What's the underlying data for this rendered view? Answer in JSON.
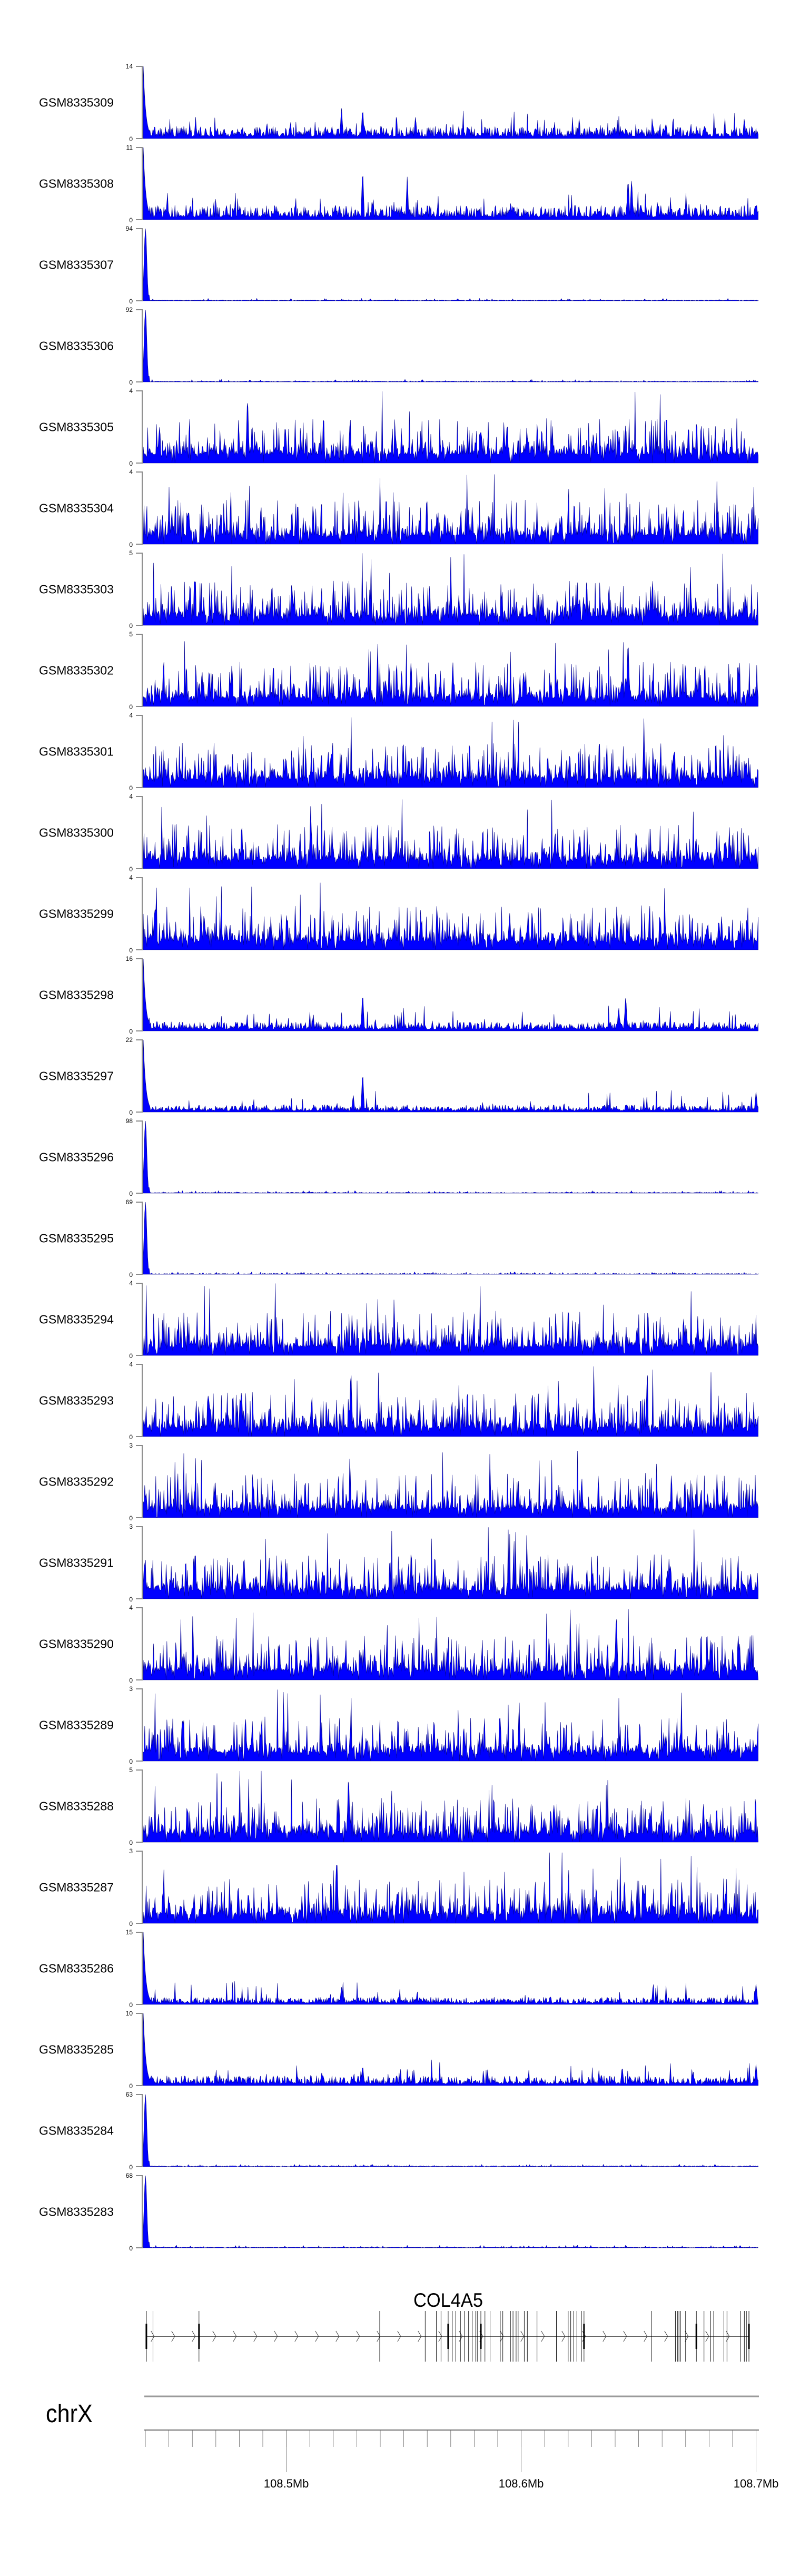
{
  "chart_data": {
    "type": "area",
    "title": "",
    "xlabel": "",
    "ylabel": "",
    "chromosome": "chrX",
    "x_range_mb": [
      108.44,
      108.701
    ],
    "axis_ticks": {
      "minor_step_mb": 0.01,
      "major": [
        {
          "value": 108.5,
          "label": "108.5Mb"
        },
        {
          "value": 108.6,
          "label": "108.6Mb"
        },
        {
          "value": 108.7,
          "label": "108.7Mb"
        }
      ]
    },
    "series_color": "#0000FF",
    "series_outline": "#00008B",
    "tracks": [
      {
        "name": "GSM8335309",
        "ylim": [
          0,
          14
        ],
        "ymax_label": "14",
        "ymin_label": "0",
        "profile": "moderate",
        "start_peak": 14,
        "baseline_mean": 1.4,
        "peaks": [
          {
            "mb": 108.5235,
            "value": 6.2
          },
          {
            "mb": 108.5325,
            "value": 6.2
          },
          {
            "mb": 108.555,
            "value": 4.5
          },
          {
            "mb": 108.695,
            "value": 4.1
          }
        ]
      },
      {
        "name": "GSM8335308",
        "ylim": [
          0,
          11
        ],
        "ymax_label": "11",
        "ymin_label": "0",
        "profile": "moderate",
        "start_peak": 11,
        "baseline_mean": 1.3,
        "peaks": [
          {
            "mb": 108.5325,
            "value": 8.1
          },
          {
            "mb": 108.5515,
            "value": 6.7
          },
          {
            "mb": 108.6455,
            "value": 6.7
          },
          {
            "mb": 108.647,
            "value": 6.7
          }
        ]
      },
      {
        "name": "GSM8335307",
        "ylim": [
          0,
          94
        ],
        "ymax_label": "94",
        "ymin_label": "0",
        "profile": "start-peak",
        "start_peak": 94,
        "baseline_mean": 0.6,
        "peaks": []
      },
      {
        "name": "GSM8335306",
        "ylim": [
          0,
          92
        ],
        "ymax_label": "92",
        "ymin_label": "0",
        "profile": "start-peak",
        "start_peak": 92,
        "baseline_mean": 0.6,
        "peaks": []
      },
      {
        "name": "GSM8335305",
        "ylim": [
          0,
          4
        ],
        "ymax_label": "4",
        "ymin_label": "0",
        "profile": "low",
        "start_peak": 1,
        "baseline_mean": 0.8,
        "peaks": [
          {
            "mb": 108.4835,
            "value": 4
          }
        ]
      },
      {
        "name": "GSM8335304",
        "ylim": [
          0,
          4
        ],
        "ymax_label": "4",
        "ymin_label": "0",
        "profile": "low",
        "start_peak": 2,
        "baseline_mean": 0.8,
        "peaks": []
      },
      {
        "name": "GSM8335303",
        "ylim": [
          0,
          5
        ],
        "ymax_label": "5",
        "ymin_label": "0",
        "profile": "low",
        "start_peak": 2,
        "baseline_mean": 0.9,
        "peaks": []
      },
      {
        "name": "GSM8335302",
        "ylim": [
          0,
          5
        ],
        "ymax_label": "5",
        "ymin_label": "0",
        "profile": "low",
        "start_peak": 1,
        "baseline_mean": 0.9,
        "peaks": [
          {
            "mb": 108.6455,
            "value": 5
          }
        ]
      },
      {
        "name": "GSM8335301",
        "ylim": [
          0,
          4
        ],
        "ymax_label": "4",
        "ymin_label": "0",
        "profile": "low",
        "start_peak": 2,
        "baseline_mean": 0.8,
        "peaks": []
      },
      {
        "name": "GSM8335300",
        "ylim": [
          0,
          4
        ],
        "ymax_label": "4",
        "ymin_label": "0",
        "profile": "low",
        "start_peak": 1,
        "baseline_mean": 0.8,
        "peaks": []
      },
      {
        "name": "GSM8335299",
        "ylim": [
          0,
          4
        ],
        "ymax_label": "4",
        "ymin_label": "0",
        "profile": "low",
        "start_peak": 1,
        "baseline_mean": 0.9,
        "peaks": []
      },
      {
        "name": "GSM8335298",
        "ylim": [
          0,
          16
        ],
        "ymax_label": "16",
        "ymin_label": "0",
        "profile": "moderate",
        "start_peak": 16,
        "baseline_mean": 1.2,
        "peaks": [
          {
            "mb": 108.5325,
            "value": 9
          },
          {
            "mb": 108.6445,
            "value": 8.3
          },
          {
            "mb": 108.6415,
            "value": 5.5
          }
        ]
      },
      {
        "name": "GSM8335297",
        "ylim": [
          0,
          22
        ],
        "ymax_label": "22",
        "ymin_label": "0",
        "profile": "moderate",
        "start_peak": 22,
        "baseline_mean": 1.3,
        "peaks": [
          {
            "mb": 108.5325,
            "value": 13
          },
          {
            "mb": 108.5285,
            "value": 5.5
          },
          {
            "mb": 108.7,
            "value": 6.5
          }
        ]
      },
      {
        "name": "GSM8335296",
        "ylim": [
          0,
          98
        ],
        "ymax_label": "98",
        "ymin_label": "0",
        "profile": "start-peak",
        "start_peak": 98,
        "baseline_mean": 0.7,
        "peaks": []
      },
      {
        "name": "GSM8335295",
        "ylim": [
          0,
          69
        ],
        "ymax_label": "69",
        "ymin_label": "0",
        "profile": "start-peak",
        "start_peak": 69,
        "baseline_mean": 0.6,
        "peaks": []
      },
      {
        "name": "GSM8335294",
        "ylim": [
          0,
          4
        ],
        "ymax_label": "4",
        "ymin_label": "0",
        "profile": "low",
        "start_peak": 1,
        "baseline_mean": 0.8,
        "peaks": []
      },
      {
        "name": "GSM8335293",
        "ylim": [
          0,
          4
        ],
        "ymax_label": "4",
        "ymin_label": "0",
        "profile": "low",
        "start_peak": 1,
        "baseline_mean": 0.8,
        "peaks": [
          {
            "mb": 108.5275,
            "value": 4
          }
        ]
      },
      {
        "name": "GSM8335292",
        "ylim": [
          0,
          3
        ],
        "ymax_label": "3",
        "ymin_label": "0",
        "profile": "low",
        "start_peak": 1,
        "baseline_mean": 0.7,
        "peaks": []
      },
      {
        "name": "GSM8335291",
        "ylim": [
          0,
          3
        ],
        "ymax_label": "3",
        "ymin_label": "0",
        "profile": "low",
        "start_peak": 1,
        "baseline_mean": 0.7,
        "peaks": []
      },
      {
        "name": "GSM8335290",
        "ylim": [
          0,
          4
        ],
        "ymax_label": "4",
        "ymin_label": "0",
        "profile": "low",
        "start_peak": 1,
        "baseline_mean": 0.8,
        "peaks": [
          {
            "mb": 108.6405,
            "value": 4
          }
        ]
      },
      {
        "name": "GSM8335289",
        "ylim": [
          0,
          3
        ],
        "ymax_label": "3",
        "ymin_label": "0",
        "profile": "low",
        "start_peak": 0,
        "baseline_mean": 0.7,
        "peaks": []
      },
      {
        "name": "GSM8335288",
        "ylim": [
          0,
          5
        ],
        "ymax_label": "5",
        "ymin_label": "0",
        "profile": "low",
        "start_peak": 1,
        "baseline_mean": 0.8,
        "peaks": [
          {
            "mb": 108.5265,
            "value": 5
          }
        ]
      },
      {
        "name": "GSM8335287",
        "ylim": [
          0,
          3
        ],
        "ymax_label": "3",
        "ymin_label": "0",
        "profile": "low",
        "start_peak": 1,
        "baseline_mean": 0.8,
        "peaks": [
          {
            "mb": 108.5215,
            "value": 3
          }
        ]
      },
      {
        "name": "GSM8335286",
        "ylim": [
          0,
          15
        ],
        "ymax_label": "15",
        "ymin_label": "0",
        "profile": "moderate",
        "start_peak": 15,
        "baseline_mean": 0.9,
        "peaks": [
          {
            "mb": 108.5235,
            "value": 3.8
          },
          {
            "mb": 108.7,
            "value": 4.5
          }
        ]
      },
      {
        "name": "GSM8335285",
        "ylim": [
          0,
          10
        ],
        "ymax_label": "10",
        "ymin_label": "0",
        "profile": "moderate",
        "start_peak": 10,
        "baseline_mean": 0.8,
        "peaks": [
          {
            "mb": 108.5325,
            "value": 3
          },
          {
            "mb": 108.643,
            "value": 2.8
          },
          {
            "mb": 108.7,
            "value": 3.1
          }
        ]
      },
      {
        "name": "GSM8335284",
        "ylim": [
          0,
          63
        ],
        "ymax_label": "63",
        "ymin_label": "0",
        "profile": "start-peak",
        "start_peak": 63,
        "baseline_mean": 0.5,
        "peaks": []
      },
      {
        "name": "GSM8335283",
        "ylim": [
          0,
          68
        ],
        "ymax_label": "68",
        "ymin_label": "0",
        "profile": "start-peak",
        "start_peak": 68,
        "baseline_mean": 0.5,
        "peaks": []
      }
    ],
    "gene": {
      "name": "COL4A5",
      "strand": "+",
      "start_mb": 108.4404,
      "end_mb": 108.697,
      "exons": [
        {
          "mb": 108.44043,
          "major": true
        },
        {
          "mb": 108.44326,
          "major": false
        },
        {
          "mb": 108.46283,
          "major": true
        },
        {
          "mb": 108.53978,
          "major": false
        },
        {
          "mb": 108.55913,
          "major": false
        },
        {
          "mb": 108.56391,
          "major": false
        },
        {
          "mb": 108.56587,
          "major": false
        },
        {
          "mb": 108.56891,
          "major": true
        },
        {
          "mb": 108.57065,
          "major": false
        },
        {
          "mb": 108.57217,
          "major": false
        },
        {
          "mb": 108.57413,
          "major": false
        },
        {
          "mb": 108.57587,
          "major": false
        },
        {
          "mb": 108.57761,
          "major": false
        },
        {
          "mb": 108.57913,
          "major": false
        },
        {
          "mb": 108.58065,
          "major": false
        },
        {
          "mb": 108.5813,
          "major": false
        },
        {
          "mb": 108.58283,
          "major": true
        },
        {
          "mb": 108.58457,
          "major": false
        },
        {
          "mb": 108.58674,
          "major": false
        },
        {
          "mb": 108.59109,
          "major": false
        },
        {
          "mb": 108.59217,
          "major": false
        },
        {
          "mb": 108.59543,
          "major": false
        },
        {
          "mb": 108.59652,
          "major": false
        },
        {
          "mb": 108.59783,
          "major": false
        },
        {
          "mb": 108.5987,
          "major": false
        },
        {
          "mb": 108.6013,
          "major": false
        },
        {
          "mb": 108.60261,
          "major": false
        },
        {
          "mb": 108.60674,
          "major": false
        },
        {
          "mb": 108.615,
          "major": false
        },
        {
          "mb": 108.62,
          "major": false
        },
        {
          "mb": 108.62109,
          "major": false
        },
        {
          "mb": 108.62239,
          "major": false
        },
        {
          "mb": 108.6237,
          "major": false
        },
        {
          "mb": 108.62565,
          "major": false
        },
        {
          "mb": 108.62674,
          "major": true
        },
        {
          "mb": 108.65543,
          "major": false
        },
        {
          "mb": 108.66565,
          "major": false
        },
        {
          "mb": 108.66652,
          "major": false
        },
        {
          "mb": 108.66717,
          "major": false
        },
        {
          "mb": 108.66783,
          "major": false
        },
        {
          "mb": 108.67,
          "major": false
        },
        {
          "mb": 108.67457,
          "major": true
        },
        {
          "mb": 108.67783,
          "major": false
        },
        {
          "mb": 108.68065,
          "major": false
        },
        {
          "mb": 108.68196,
          "major": false
        },
        {
          "mb": 108.6863,
          "major": false
        },
        {
          "mb": 108.68761,
          "major": false
        },
        {
          "mb": 108.69326,
          "major": false
        },
        {
          "mb": 108.695,
          "major": false
        },
        {
          "mb": 108.69587,
          "major": false
        },
        {
          "mb": 108.69696,
          "major": true
        }
      ]
    }
  }
}
